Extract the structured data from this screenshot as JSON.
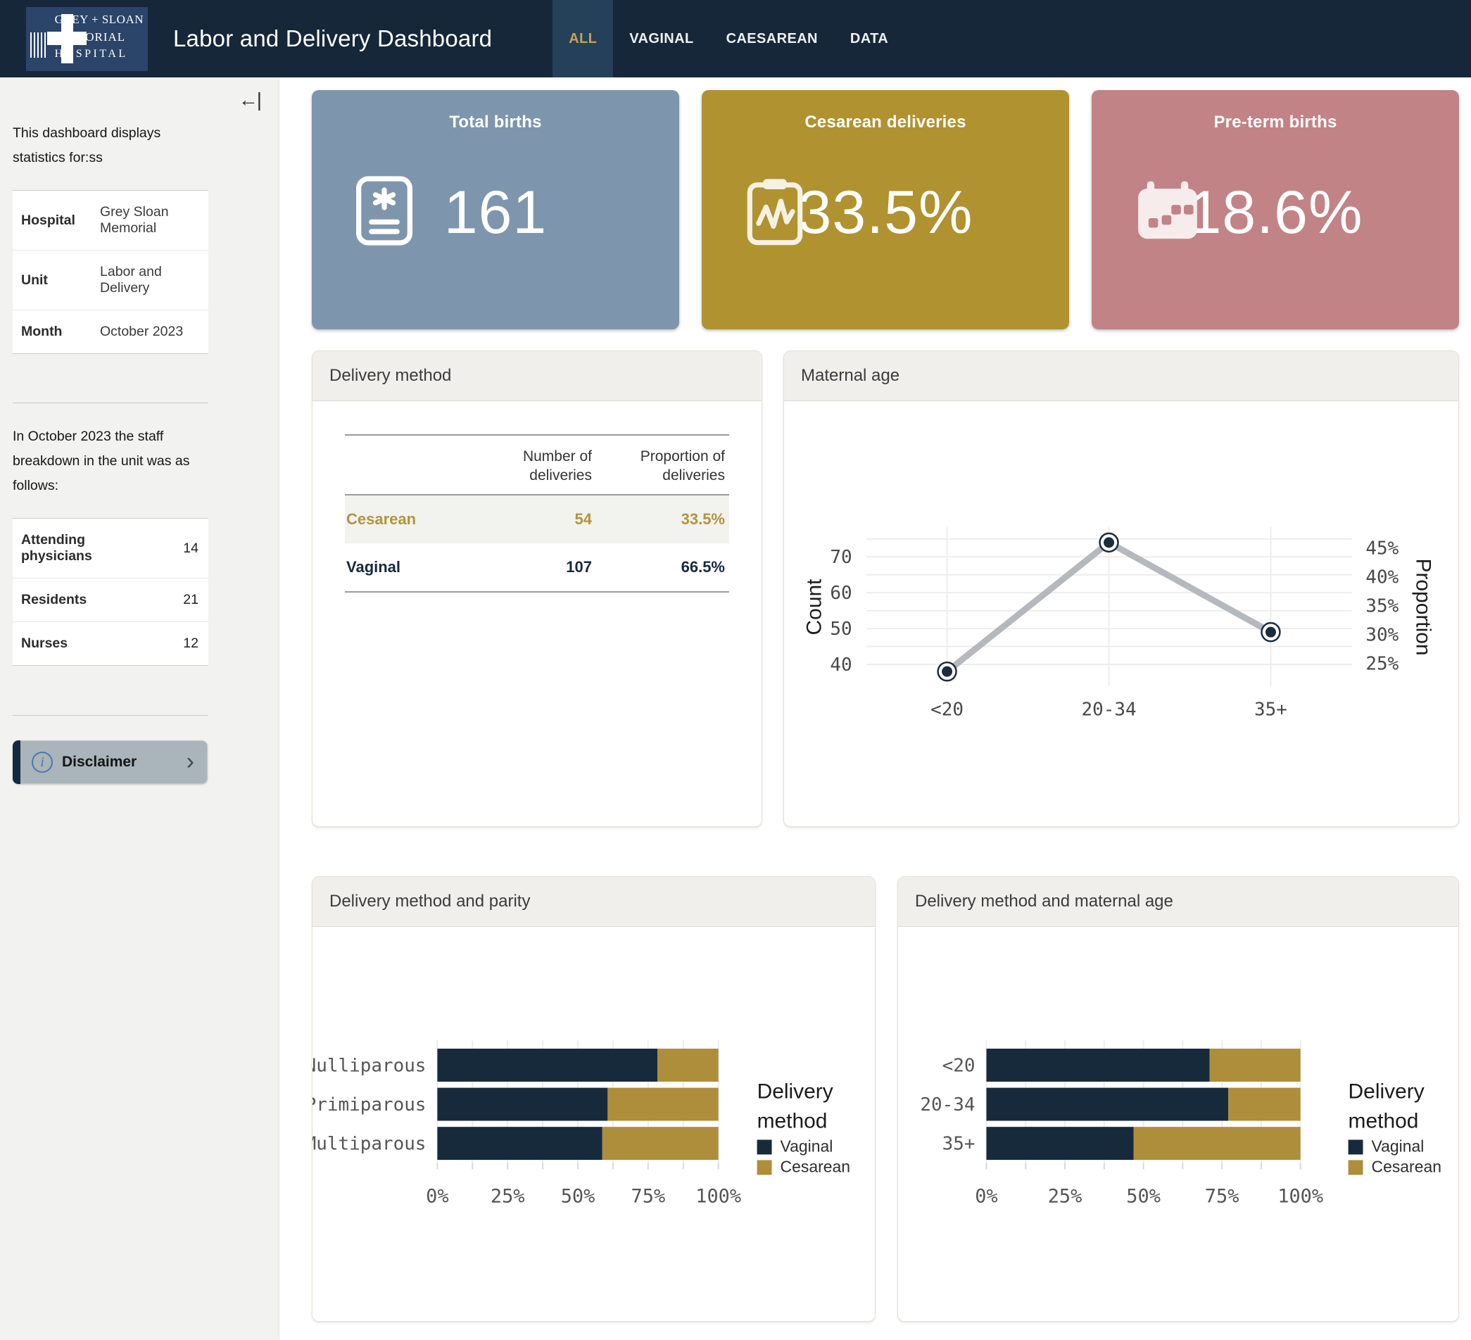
{
  "header": {
    "logo": {
      "line1": "GREY + SLOAN",
      "line2": "MEMORIAL",
      "line3": "HOSPITAL"
    },
    "title": "Labor and Delivery Dashboard",
    "tabs": [
      {
        "label": "ALL",
        "active": true
      },
      {
        "label": "VAGINAL",
        "active": false
      },
      {
        "label": "CAESAREAN",
        "active": false
      },
      {
        "label": "DATA",
        "active": false
      }
    ]
  },
  "sidebar": {
    "collapse_icon": "←|",
    "intro": "This dashboard displays statistics for:ss",
    "info_table": {
      "rows": [
        {
          "label": "Hospital",
          "value": "Grey Sloan Memorial"
        },
        {
          "label": "Unit",
          "value": "Labor and Delivery"
        },
        {
          "label": "Month",
          "value": "October 2023"
        }
      ]
    },
    "staff_intro": "In October 2023 the staff breakdown in the unit was as follows:",
    "staff_table": {
      "rows": [
        {
          "label": "Attending physicians",
          "value": "14"
        },
        {
          "label": "Residents",
          "value": "21"
        },
        {
          "label": "Nurses",
          "value": "12"
        }
      ]
    },
    "disclaimer": {
      "label": "Disclaimer",
      "info_icon": "i",
      "chevron": "›"
    }
  },
  "kpis": [
    {
      "title": "Total births",
      "value": "161",
      "bg": "#7e96ad",
      "icon": "birth-record-icon"
    },
    {
      "title": "Cesarean deliveries",
      "value": "33.5%",
      "bg": "#b09230",
      "icon": "clipboard-pulse-icon"
    },
    {
      "title": "Pre-term births",
      "value": "18.6%",
      "bg": "#c28386",
      "icon": "calendar-icon"
    }
  ],
  "colors": {
    "vaginal": "#172a3c",
    "cesarean": "#ae8e3b",
    "header_bg": "#152739",
    "active_tab_gold": "#c5a452"
  },
  "chart_data": [
    {
      "id": "delivery_method_table",
      "type": "table",
      "title": "Delivery method",
      "columns": [
        "",
        "Number of deliveries",
        "Proportion of deliveries"
      ],
      "rows": [
        {
          "label": "Cesarean",
          "number": "54",
          "proportion": "33.5%",
          "color": "#b2943c"
        },
        {
          "label": "Vaginal",
          "number": "107",
          "proportion": "66.5%",
          "color": "#16293e"
        }
      ]
    },
    {
      "id": "maternal_age",
      "type": "line",
      "title": "Maternal age",
      "categories": [
        "<20",
        "20-34",
        "35+"
      ],
      "values": [
        38,
        74,
        49
      ],
      "total_births": 161,
      "left_axis": {
        "label": "Count",
        "ticks": [
          40,
          50,
          60,
          70
        ],
        "minor_ticks": [
          45,
          55,
          65,
          75
        ],
        "domain": [
          36,
          76
        ]
      },
      "right_axis": {
        "label": "Proportion",
        "ticks_pct": [
          25,
          30,
          35,
          40,
          45
        ]
      },
      "line_color": "#b5b9bd",
      "point_color": "#1b2c3e"
    },
    {
      "id": "parity",
      "type": "stacked_bar_100",
      "title": "Delivery method and parity",
      "categories": [
        "Nulliparous",
        "Primiparous",
        "Multiparous"
      ],
      "series": [
        {
          "name": "Vaginal",
          "color": "#172a3c",
          "values": [
            78.3,
            60.6,
            58.7
          ]
        },
        {
          "name": "Cesarean",
          "color": "#ae8e3b",
          "values": [
            21.7,
            39.4,
            41.3
          ]
        }
      ],
      "x_ticks_pct": [
        0,
        25,
        50,
        75,
        100
      ],
      "legend_title": "Delivery method"
    },
    {
      "id": "age_method",
      "type": "stacked_bar_100",
      "title": "Delivery method and maternal age",
      "categories": [
        "<20",
        "20-34",
        "35+"
      ],
      "series": [
        {
          "name": "Vaginal",
          "color": "#172a3c",
          "values": [
            71.1,
            77.0,
            46.9
          ]
        },
        {
          "name": "Cesarean",
          "color": "#ae8e3b",
          "values": [
            28.9,
            23.0,
            53.1
          ]
        }
      ],
      "x_ticks_pct": [
        0,
        25,
        50,
        75,
        100
      ],
      "legend_title": "Delivery method"
    }
  ]
}
